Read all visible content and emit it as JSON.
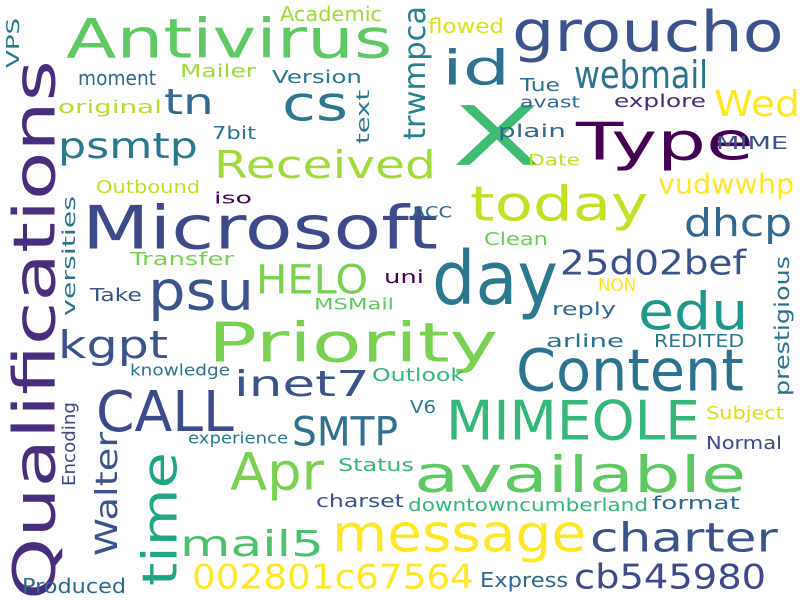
{
  "words": [
    {
      "text": "X",
      "color": "#3fbc73"
    },
    {
      "text": "day",
      "color": "#2a788e"
    },
    {
      "text": "Qualifications",
      "color": "#472d7b"
    },
    {
      "text": "Microsoft",
      "color": "#3e4989"
    },
    {
      "text": "Content",
      "color": "#2c728e"
    },
    {
      "text": "message",
      "color": "#fde725"
    },
    {
      "text": "available",
      "color": "#5ec962"
    },
    {
      "text": "MIMEOLE",
      "color": "#35b779"
    },
    {
      "text": "Antivirus",
      "color": "#5ec962"
    },
    {
      "text": "groucho",
      "color": "#3b528b"
    },
    {
      "text": "Type",
      "color": "#440154"
    },
    {
      "text": "today",
      "color": "#c2df23"
    },
    {
      "text": "Priority",
      "color": "#7ad151"
    },
    {
      "text": "CALL",
      "color": "#3e4989"
    },
    {
      "text": "time",
      "color": "#21a685"
    },
    {
      "text": "Apr",
      "color": "#7ad151"
    },
    {
      "text": "edu",
      "color": "#1f988b"
    },
    {
      "text": "psu",
      "color": "#3b528b"
    },
    {
      "text": "id",
      "color": "#2c728e"
    },
    {
      "text": "cs",
      "color": "#2a788e"
    },
    {
      "text": "webmail",
      "color": "#2c728e"
    },
    {
      "text": "Received",
      "color": "#a0da39"
    },
    {
      "text": "charter",
      "color": "#3b528b"
    },
    {
      "text": "cb545980",
      "color": "#3e4989"
    },
    {
      "text": "002801c67564",
      "color": "#fde725"
    },
    {
      "text": "dhcp",
      "color": "#31688e"
    },
    {
      "text": "25d02bef",
      "color": "#3b528b"
    },
    {
      "text": "Wed",
      "color": "#fde725"
    },
    {
      "text": "HELO",
      "color": "#7ad151"
    },
    {
      "text": "inet7",
      "color": "#3b528b"
    },
    {
      "text": "SMTP",
      "color": "#2c728e"
    },
    {
      "text": "mail5",
      "color": "#4ac16d"
    },
    {
      "text": "kgpt",
      "color": "#3b528b"
    },
    {
      "text": "psmtp",
      "color": "#2a788e"
    },
    {
      "text": "tn",
      "color": "#31688e"
    },
    {
      "text": "vudwwhp",
      "color": "#fde725"
    },
    {
      "text": "trwmpca",
      "color": "#26828e"
    },
    {
      "text": "Walter",
      "color": "#3b528b"
    },
    {
      "text": "Academic",
      "color": "#a0da39"
    },
    {
      "text": "flowed",
      "color": "#d8e219"
    },
    {
      "text": "VPS",
      "color": "#2a788e"
    },
    {
      "text": "moment",
      "color": "#31688e"
    },
    {
      "text": "Mailer",
      "color": "#a0da39"
    },
    {
      "text": "Version",
      "color": "#2a788e"
    },
    {
      "text": "Tue",
      "color": "#2c728e"
    },
    {
      "text": "avast",
      "color": "#31688e"
    },
    {
      "text": "explore",
      "color": "#472d7b"
    },
    {
      "text": "original",
      "color": "#b5de2b"
    },
    {
      "text": "text",
      "color": "#2a788e"
    },
    {
      "text": "plain",
      "color": "#31688e"
    },
    {
      "text": "MIME",
      "color": "#3b528b"
    },
    {
      "text": "7bit",
      "color": "#2c728e"
    },
    {
      "text": "Date",
      "color": "#c2df23"
    },
    {
      "text": "Outbound",
      "color": "#c2df23"
    },
    {
      "text": "iso",
      "color": "#440154"
    },
    {
      "text": "ACC",
      "color": "#31688e"
    },
    {
      "text": "Clean",
      "color": "#6ccd5a"
    },
    {
      "text": "versities",
      "color": "#2c728e"
    },
    {
      "text": "Transfer",
      "color": "#7ad151"
    },
    {
      "text": "uni",
      "color": "#440154"
    },
    {
      "text": "NON",
      "color": "#fde725"
    },
    {
      "text": "prestigious",
      "color": "#2c728e"
    },
    {
      "text": "Take",
      "color": "#3b528b"
    },
    {
      "text": "MSMail",
      "color": "#5ec962"
    },
    {
      "text": "reply",
      "color": "#31688e"
    },
    {
      "text": "arline",
      "color": "#2c728e"
    },
    {
      "text": "REDITED",
      "color": "#2a788e"
    },
    {
      "text": "knowledge",
      "color": "#2c728e"
    },
    {
      "text": "Outlook",
      "color": "#35b779"
    },
    {
      "text": "V6",
      "color": "#2a788e"
    },
    {
      "text": "Subject",
      "color": "#d8e219"
    },
    {
      "text": "Encoding",
      "color": "#3e4989"
    },
    {
      "text": "experience",
      "color": "#2a788e"
    },
    {
      "text": "Normal",
      "color": "#3e4989"
    },
    {
      "text": "Status",
      "color": "#35b779"
    },
    {
      "text": "charset",
      "color": "#3b528b"
    },
    {
      "text": "downtowncumberland",
      "color": "#35b779"
    },
    {
      "text": "format",
      "color": "#31688e"
    },
    {
      "text": "Produced",
      "color": "#31688e"
    },
    {
      "text": "Express",
      "color": "#31688e"
    }
  ]
}
